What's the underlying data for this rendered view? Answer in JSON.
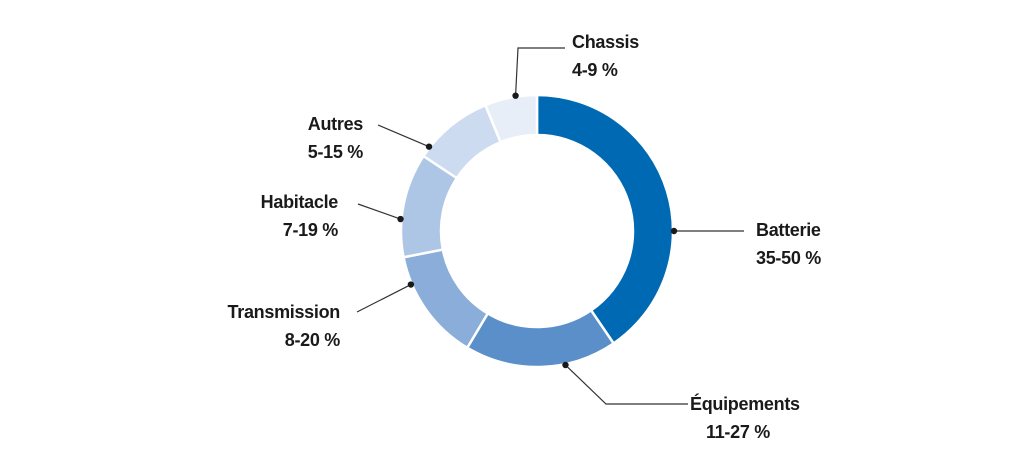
{
  "chart_data": {
    "type": "pie",
    "variant": "donut",
    "title": "",
    "grid": false,
    "legend": "none",
    "categories": [
      "Batterie",
      "Équipements",
      "Transmission",
      "Habitacle",
      "Autres",
      "Chassis"
    ],
    "ranges": [
      "35-50 %",
      "11-27 %",
      "8-20 %",
      "7-19 %",
      "5-15 %",
      "4-9 %"
    ],
    "values": [
      42.5,
      19,
      14,
      13,
      10,
      6.5
    ],
    "colors": [
      "#0069b4",
      "#5b8fca",
      "#8aaed9",
      "#adc6e5",
      "#ccdbef",
      "#e7eef8"
    ]
  }
}
